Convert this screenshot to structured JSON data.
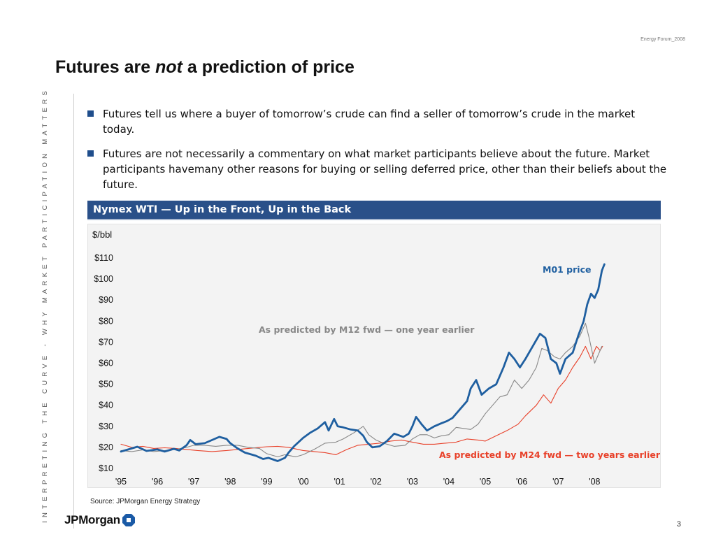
{
  "header_note": "Energy Forum_2008",
  "title": {
    "part1": "Futures are ",
    "emphasis": "not",
    "part2": " a prediction of price"
  },
  "side_text": "INTERPRETING THE CURVE - WHY MARKET PARTICIPATION MATTERS",
  "bullets": [
    "Futures tell us where a buyer of tomorrow’s crude can find a seller of tomorrow’s crude in the market today.",
    "Futures are not necessarily a commentary on what market participants believe about the future. Market participants havemany other reasons for buying or selling deferred price, other than their beliefs about the future."
  ],
  "panel_title": "Nymex WTI — Up in the Front, Up in the Back",
  "chart_data": {
    "type": "line",
    "title": "",
    "ylabel": "$/bbl",
    "xlabel": "",
    "x_ticks": [
      "'95",
      "'96",
      "'97",
      "'98",
      "'99",
      "'00",
      "'01",
      "'02",
      "'03",
      "'04",
      "'05",
      "'06",
      "'07",
      "'08"
    ],
    "y_ticks": [
      "$10",
      "$20",
      "$30",
      "$40",
      "$50",
      "$60",
      "$70",
      "$80",
      "$90",
      "$100",
      "$110"
    ],
    "ylim": [
      10,
      110
    ],
    "xlim": [
      1995,
      2008.3
    ],
    "grid": false,
    "annotations": [
      {
        "text": "M01 price",
        "series": "m01",
        "color": "#1f5fa0"
      },
      {
        "text": "As predicted by M12 fwd — one year earlier",
        "series": "m12",
        "color": "#888888"
      },
      {
        "text": "As predicted by M24 fwd — two years earlier",
        "series": "m24",
        "color": "#e8412a"
      }
    ],
    "series": [
      {
        "id": "m01",
        "color": "#1f5fa0",
        "points": [
          [
            1995.0,
            18.0
          ],
          [
            1995.2,
            19.0
          ],
          [
            1995.45,
            20.3
          ],
          [
            1995.7,
            18.3
          ],
          [
            1996.0,
            19.0
          ],
          [
            1996.2,
            18.0
          ],
          [
            1996.45,
            19.3
          ],
          [
            1996.6,
            18.5
          ],
          [
            1996.8,
            21.0
          ],
          [
            1996.9,
            23.5
          ],
          [
            1997.05,
            21.5
          ],
          [
            1997.3,
            22.0
          ],
          [
            1997.5,
            23.5
          ],
          [
            1997.7,
            25.0
          ],
          [
            1997.9,
            24.0
          ],
          [
            1998.0,
            22.0
          ],
          [
            1998.2,
            19.5
          ],
          [
            1998.4,
            17.5
          ],
          [
            1998.7,
            16.0
          ],
          [
            1998.9,
            14.5
          ],
          [
            1999.05,
            15.0
          ],
          [
            1999.3,
            13.5
          ],
          [
            1999.5,
            15.0
          ],
          [
            1999.6,
            17.5
          ],
          [
            1999.75,
            20.5
          ],
          [
            2000.0,
            24.5
          ],
          [
            2000.2,
            27.0
          ],
          [
            2000.4,
            29.0
          ],
          [
            2000.6,
            32.0
          ],
          [
            2000.7,
            28.0
          ],
          [
            2000.85,
            33.5
          ],
          [
            2000.95,
            30.0
          ],
          [
            2001.1,
            29.5
          ],
          [
            2001.3,
            28.5
          ],
          [
            2001.5,
            28.0
          ],
          [
            2001.65,
            25.5
          ],
          [
            2001.75,
            22.5
          ],
          [
            2001.9,
            20.0
          ],
          [
            2002.1,
            20.5
          ],
          [
            2002.3,
            23.0
          ],
          [
            2002.5,
            26.5
          ],
          [
            2002.75,
            25.0
          ],
          [
            2002.9,
            26.5
          ],
          [
            2003.0,
            30.0
          ],
          [
            2003.1,
            34.5
          ],
          [
            2003.25,
            31.0
          ],
          [
            2003.4,
            28.0
          ],
          [
            2003.6,
            30.0
          ],
          [
            2003.8,
            31.5
          ],
          [
            2003.95,
            32.5
          ],
          [
            2004.1,
            34.0
          ],
          [
            2004.3,
            38.0
          ],
          [
            2004.5,
            42.0
          ],
          [
            2004.6,
            48.0
          ],
          [
            2004.75,
            52.0
          ],
          [
            2004.9,
            45.0
          ],
          [
            2005.1,
            48.0
          ],
          [
            2005.3,
            50.0
          ],
          [
            2005.5,
            58.0
          ],
          [
            2005.65,
            65.0
          ],
          [
            2005.8,
            62.0
          ],
          [
            2005.95,
            58.0
          ],
          [
            2006.1,
            62.0
          ],
          [
            2006.3,
            68.0
          ],
          [
            2006.5,
            74.0
          ],
          [
            2006.65,
            72.0
          ],
          [
            2006.8,
            62.0
          ],
          [
            2006.95,
            60.0
          ],
          [
            2007.05,
            55.0
          ],
          [
            2007.2,
            62.0
          ],
          [
            2007.4,
            65.0
          ],
          [
            2007.55,
            73.0
          ],
          [
            2007.7,
            80.0
          ],
          [
            2007.8,
            88.0
          ],
          [
            2007.9,
            93.0
          ],
          [
            2008.0,
            91.0
          ],
          [
            2008.1,
            95.0
          ],
          [
            2008.2,
            104.0
          ],
          [
            2008.27,
            107.0
          ]
        ]
      },
      {
        "id": "m12",
        "color": "#888888",
        "points": [
          [
            1995.0,
            18.5
          ],
          [
            1995.3,
            18.0
          ],
          [
            1995.6,
            18.8
          ],
          [
            1995.9,
            18.0
          ],
          [
            1996.2,
            18.5
          ],
          [
            1996.5,
            19.0
          ],
          [
            1996.8,
            20.0
          ],
          [
            1997.0,
            21.0
          ],
          [
            1997.3,
            21.0
          ],
          [
            1997.6,
            20.5
          ],
          [
            1997.9,
            21.0
          ],
          [
            1998.2,
            21.0
          ],
          [
            1998.5,
            20.0
          ],
          [
            1998.8,
            19.5
          ],
          [
            1999.0,
            17.0
          ],
          [
            1999.3,
            15.5
          ],
          [
            1999.5,
            16.5
          ],
          [
            1999.8,
            15.5
          ],
          [
            2000.0,
            16.5
          ],
          [
            2000.3,
            19.0
          ],
          [
            2000.6,
            22.0
          ],
          [
            2000.9,
            22.5
          ],
          [
            2001.1,
            24.0
          ],
          [
            2001.4,
            27.0
          ],
          [
            2001.65,
            30.0
          ],
          [
            2001.8,
            26.0
          ],
          [
            2002.0,
            23.5
          ],
          [
            2002.2,
            22.0
          ],
          [
            2002.5,
            20.5
          ],
          [
            2002.8,
            21.0
          ],
          [
            2003.0,
            24.0
          ],
          [
            2003.2,
            26.0
          ],
          [
            2003.4,
            26.0
          ],
          [
            2003.6,
            24.5
          ],
          [
            2003.8,
            25.5
          ],
          [
            2004.0,
            26.0
          ],
          [
            2004.2,
            29.5
          ],
          [
            2004.4,
            29.0
          ],
          [
            2004.6,
            28.5
          ],
          [
            2004.8,
            31.0
          ],
          [
            2005.0,
            36.0
          ],
          [
            2005.2,
            40.0
          ],
          [
            2005.4,
            44.0
          ],
          [
            2005.6,
            45.0
          ],
          [
            2005.8,
            52.0
          ],
          [
            2006.0,
            48.0
          ],
          [
            2006.2,
            52.0
          ],
          [
            2006.4,
            58.0
          ],
          [
            2006.55,
            67.0
          ],
          [
            2006.7,
            66.0
          ],
          [
            2006.9,
            63.0
          ],
          [
            2007.05,
            62.0
          ],
          [
            2007.2,
            65.0
          ],
          [
            2007.4,
            68.0
          ],
          [
            2007.6,
            73.0
          ],
          [
            2007.75,
            79.0
          ],
          [
            2007.85,
            72.0
          ],
          [
            2008.0,
            60.0
          ],
          [
            2008.1,
            64.0
          ],
          [
            2008.2,
            68.0
          ]
        ]
      },
      {
        "id": "m24",
        "color": "#e8412a",
        "points": [
          [
            1995.0,
            21.5
          ],
          [
            1995.3,
            20.0
          ],
          [
            1995.6,
            20.5
          ],
          [
            1995.9,
            19.5
          ],
          [
            1996.2,
            19.8
          ],
          [
            1996.5,
            19.5
          ],
          [
            1996.8,
            19.0
          ],
          [
            1997.1,
            18.5
          ],
          [
            1997.5,
            18.0
          ],
          [
            1997.9,
            18.5
          ],
          [
            1998.2,
            19.0
          ],
          [
            1998.5,
            19.5
          ],
          [
            1998.8,
            20.0
          ],
          [
            1999.0,
            20.3
          ],
          [
            1999.3,
            20.5
          ],
          [
            1999.6,
            20.0
          ],
          [
            2000.0,
            18.5
          ],
          [
            2000.3,
            18.0
          ],
          [
            2000.6,
            17.5
          ],
          [
            2000.9,
            16.5
          ],
          [
            2001.2,
            19.0
          ],
          [
            2001.5,
            21.0
          ],
          [
            2001.8,
            21.5
          ],
          [
            2002.1,
            22.0
          ],
          [
            2002.4,
            23.0
          ],
          [
            2002.7,
            23.5
          ],
          [
            2003.0,
            22.5
          ],
          [
            2003.3,
            21.5
          ],
          [
            2003.6,
            21.5
          ],
          [
            2003.9,
            22.0
          ],
          [
            2004.2,
            22.5
          ],
          [
            2004.5,
            24.0
          ],
          [
            2004.8,
            23.5
          ],
          [
            2005.0,
            23.0
          ],
          [
            2005.3,
            25.5
          ],
          [
            2005.6,
            28.0
          ],
          [
            2005.9,
            31.0
          ],
          [
            2006.1,
            35.0
          ],
          [
            2006.4,
            40.0
          ],
          [
            2006.6,
            45.0
          ],
          [
            2006.8,
            41.0
          ],
          [
            2007.0,
            48.0
          ],
          [
            2007.2,
            52.0
          ],
          [
            2007.4,
            58.0
          ],
          [
            2007.6,
            63.0
          ],
          [
            2007.75,
            68.0
          ],
          [
            2007.9,
            62.0
          ],
          [
            2008.05,
            68.0
          ],
          [
            2008.15,
            66.0
          ],
          [
            2008.22,
            68.0
          ]
        ]
      }
    ]
  },
  "source": "Source: JPMorgan Energy Strategy",
  "logo_text": "JPMorgan",
  "page_number": "3"
}
